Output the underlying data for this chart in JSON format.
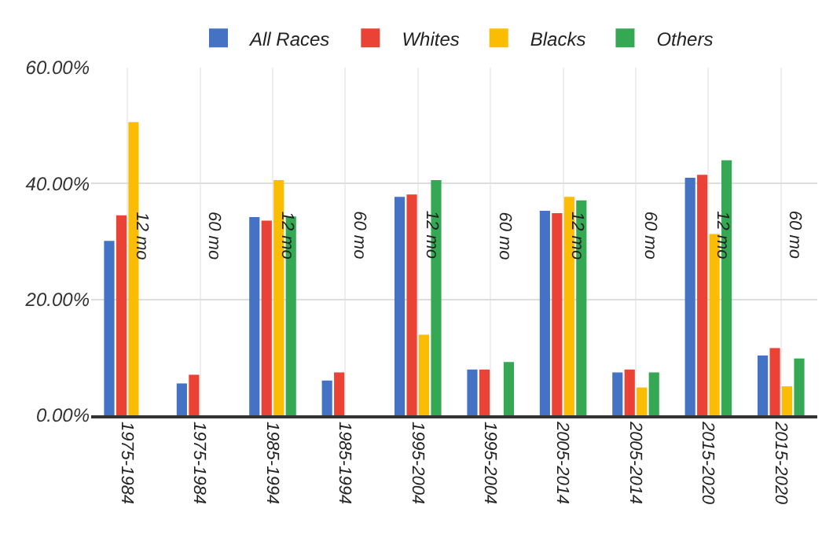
{
  "chart_data": {
    "type": "bar",
    "categories": [
      "1975-1984",
      "1975-1984",
      "1985-1994",
      "1985-1994",
      "1995-2004",
      "1995-2004",
      "2005-2014",
      "2005-2014",
      "2015-2020",
      "2015-2020"
    ],
    "series": [
      {
        "name": "All Races",
        "color": "#4472c4",
        "values": [
          30.1,
          5.5,
          34.2,
          6.0,
          37.7,
          7.9,
          35.3,
          7.4,
          41.0,
          10.3
        ]
      },
      {
        "name": "Whites",
        "color": "#ea4335",
        "values": [
          34.5,
          7.0,
          33.6,
          7.4,
          38.1,
          7.9,
          34.9,
          7.9,
          41.5,
          11.6
        ]
      },
      {
        "name": "Blacks",
        "color": "#fbbc04",
        "values": [
          50.6,
          null,
          40.6,
          null,
          13.9,
          null,
          37.7,
          4.8,
          31.3,
          5.0
        ]
      },
      {
        "name": "Others",
        "color": "#34a853",
        "values": [
          null,
          null,
          34.3,
          null,
          40.6,
          9.2,
          37.1,
          7.4,
          44.0,
          9.8
        ]
      }
    ],
    "annotations": [
      "12 mo",
      "60 mo",
      "12 mo",
      "60 mo",
      "12 mo",
      "60 mo",
      "12 mo",
      "60 mo",
      "12 mo",
      "60 mo"
    ],
    "ylim": [
      0,
      60
    ],
    "yticks": [
      {
        "value": 0,
        "label": "0.00%"
      },
      {
        "value": 20,
        "label": "20.00%"
      },
      {
        "value": 40,
        "label": "40.00%"
      },
      {
        "value": 60,
        "label": "60.00%"
      }
    ],
    "grid": true,
    "legend": "top"
  }
}
